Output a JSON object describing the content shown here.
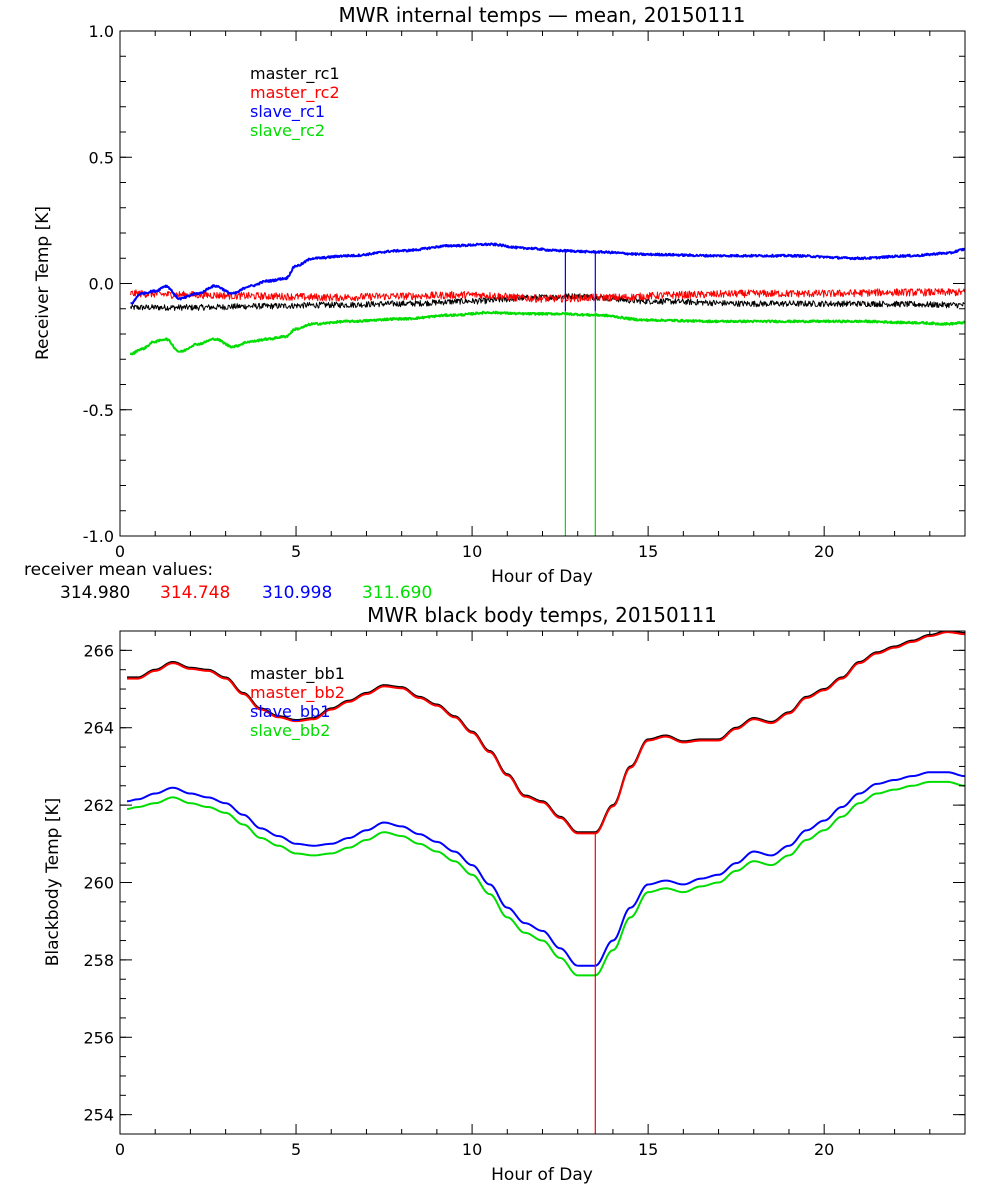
{
  "colors": {
    "black": "#000000",
    "red": "#ff0000",
    "blue": "#0000ff",
    "green": "#00dd00"
  },
  "receiver_mean": {
    "label": "receiver mean values:",
    "values": [
      "314.980",
      "314.748",
      "310.998",
      "311.690"
    ]
  },
  "chart_data": [
    {
      "type": "line",
      "title": "MWR internal temps — mean, 20150111",
      "xlabel": "Hour of Day",
      "ylabel": "Receiver Temp [K]",
      "xlim": [
        0,
        24
      ],
      "ylim": [
        -1.0,
        1.0
      ],
      "xticks": [
        0,
        5,
        10,
        15,
        20
      ],
      "xtick_labels": [
        "0",
        "5",
        "10",
        "15",
        "20"
      ],
      "yticks": [
        -1.0,
        -0.5,
        0.0,
        0.5,
        1.0
      ],
      "ytick_labels": [
        "-1.0",
        "-0.5",
        "0.0",
        "0.5",
        "1.0"
      ],
      "legend_position": "top-left",
      "series": [
        {
          "name": "master_rc1",
          "color": "black",
          "noise": 0.012,
          "x": [
            0.3,
            2,
            4,
            6,
            8,
            10,
            12,
            13,
            15,
            18,
            21,
            24
          ],
          "y": [
            -0.095,
            -0.095,
            -0.09,
            -0.085,
            -0.08,
            -0.07,
            -0.055,
            -0.05,
            -0.07,
            -0.08,
            -0.08,
            -0.085
          ]
        },
        {
          "name": "master_rc2",
          "color": "red",
          "noise": 0.015,
          "x": [
            0.3,
            2,
            4,
            6,
            8,
            10,
            12,
            14,
            16,
            18,
            20,
            22,
            24
          ],
          "y": [
            -0.04,
            -0.045,
            -0.05,
            -0.055,
            -0.05,
            -0.045,
            -0.06,
            -0.055,
            -0.045,
            -0.04,
            -0.04,
            -0.035,
            -0.035
          ]
        },
        {
          "name": "slave_rc1",
          "color": "blue",
          "noise": 0.004,
          "x": [
            0.3,
            0.6,
            1.0,
            1.3,
            1.7,
            2.2,
            2.7,
            3.2,
            3.7,
            4.2,
            4.7,
            5.0,
            5.5,
            6.5,
            8,
            9.5,
            10.5,
            11.5,
            12.5,
            13.5,
            15,
            17,
            19,
            21,
            22.5,
            23.5,
            24
          ],
          "y": [
            -0.08,
            -0.04,
            -0.03,
            -0.01,
            -0.06,
            -0.04,
            -0.01,
            -0.04,
            -0.01,
            0.01,
            0.02,
            0.07,
            0.1,
            0.11,
            0.13,
            0.15,
            0.155,
            0.14,
            0.13,
            0.125,
            0.115,
            0.11,
            0.11,
            0.1,
            0.11,
            0.12,
            0.135
          ]
        },
        {
          "name": "slave_rc2",
          "color": "green",
          "noise": 0.004,
          "x": [
            0.3,
            0.6,
            1.0,
            1.3,
            1.7,
            2.2,
            2.7,
            3.2,
            3.7,
            4.2,
            4.7,
            5.0,
            5.5,
            6.5,
            8,
            9.5,
            10.5,
            11.5,
            12.5,
            13.5,
            15,
            17,
            19,
            21,
            22.5,
            23.5,
            24
          ],
          "y": [
            -0.28,
            -0.26,
            -0.23,
            -0.22,
            -0.27,
            -0.24,
            -0.22,
            -0.25,
            -0.23,
            -0.22,
            -0.21,
            -0.18,
            -0.16,
            -0.15,
            -0.14,
            -0.125,
            -0.115,
            -0.12,
            -0.12,
            -0.125,
            -0.145,
            -0.15,
            -0.15,
            -0.15,
            -0.155,
            -0.16,
            -0.155
          ]
        }
      ],
      "vertical_lines": [
        {
          "x": 12.65,
          "color": "green",
          "from": -1.0,
          "to": -0.11
        },
        {
          "x": 13.5,
          "color": "green",
          "from": -1.0,
          "to": -0.11
        },
        {
          "x": 12.65,
          "color": "blue",
          "from": -0.11,
          "to": 0.13
        },
        {
          "x": 13.5,
          "color": "blue",
          "from": -0.11,
          "to": 0.13
        }
      ]
    },
    {
      "type": "line",
      "title": "MWR black body temps, 20150111",
      "xlabel": "Hour of Day",
      "ylabel": "Blackbody Temp [K]",
      "xlim": [
        0,
        24
      ],
      "ylim": [
        253.5,
        266.5
      ],
      "xticks": [
        0,
        5,
        10,
        15,
        20
      ],
      "xtick_labels": [
        "0",
        "5",
        "10",
        "15",
        "20"
      ],
      "yticks": [
        254,
        256,
        258,
        260,
        262,
        264,
        266
      ],
      "ytick_labels": [
        "254",
        "256",
        "258",
        "260",
        "262",
        "264",
        "266"
      ],
      "legend_position": "top-left",
      "series": [
        {
          "name": "master_bb1",
          "color": "black",
          "noise": 0,
          "x": [
            0.2,
            0.5,
            1,
            1.5,
            2,
            2.5,
            3,
            3.5,
            4,
            4.5,
            5,
            5.5,
            6,
            6.5,
            7,
            7.5,
            8,
            8.5,
            9,
            9.5,
            10,
            10.5,
            11,
            11.5,
            12,
            12.5,
            13,
            13.5,
            14,
            14.5,
            15,
            15.5,
            16,
            16.5,
            17,
            17.5,
            18,
            18.5,
            19,
            19.5,
            20,
            20.5,
            21,
            21.5,
            22,
            22.5,
            23,
            23.5,
            24
          ],
          "y": [
            265.3,
            265.3,
            265.5,
            265.7,
            265.55,
            265.5,
            265.3,
            264.9,
            264.5,
            264.3,
            264.2,
            264.25,
            264.5,
            264.7,
            264.9,
            265.1,
            265.05,
            264.8,
            264.6,
            264.3,
            263.9,
            263.4,
            262.8,
            262.25,
            262.1,
            261.7,
            261.3,
            261.3,
            262.0,
            263.0,
            263.7,
            263.8,
            263.65,
            263.7,
            263.7,
            264.0,
            264.25,
            264.15,
            264.4,
            264.8,
            265.0,
            265.3,
            265.7,
            265.95,
            266.1,
            266.25,
            266.4,
            266.5,
            266.45
          ]
        },
        {
          "name": "master_bb2",
          "color": "red",
          "noise": 0,
          "x": [
            0.2,
            0.5,
            1,
            1.5,
            2,
            2.5,
            3,
            3.5,
            4,
            4.5,
            5,
            5.5,
            6,
            6.5,
            7,
            7.5,
            8,
            8.5,
            9,
            9.5,
            10,
            10.5,
            11,
            11.5,
            12,
            12.5,
            13,
            13.5,
            14,
            14.5,
            15,
            15.5,
            16,
            16.5,
            17,
            17.5,
            18,
            18.5,
            19,
            19.5,
            20,
            20.5,
            21,
            21.5,
            22,
            22.5,
            23,
            23.5,
            24
          ],
          "y": [
            265.27,
            265.27,
            265.47,
            265.67,
            265.52,
            265.47,
            265.27,
            264.87,
            264.47,
            264.27,
            264.17,
            264.22,
            264.47,
            264.67,
            264.87,
            265.07,
            265.02,
            264.77,
            264.57,
            264.27,
            263.87,
            263.37,
            262.77,
            262.22,
            262.07,
            261.67,
            261.27,
            261.27,
            261.97,
            262.97,
            263.67,
            263.77,
            263.62,
            263.67,
            263.67,
            263.97,
            264.22,
            264.12,
            264.37,
            264.77,
            264.97,
            265.27,
            265.67,
            265.92,
            266.07,
            266.22,
            266.37,
            266.47,
            266.42
          ]
        },
        {
          "name": "slave_bb1",
          "color": "blue",
          "noise": 0,
          "x": [
            0.2,
            0.5,
            1,
            1.5,
            2,
            2.5,
            3,
            3.5,
            4,
            4.5,
            5,
            5.5,
            6,
            6.5,
            7,
            7.5,
            8,
            8.5,
            9,
            9.5,
            10,
            10.5,
            11,
            11.5,
            12,
            12.5,
            13,
            13.5,
            14,
            14.5,
            15,
            15.5,
            16,
            16.5,
            17,
            17.5,
            18,
            18.5,
            19,
            19.5,
            20,
            20.5,
            21,
            21.5,
            22,
            22.5,
            23,
            23.5,
            24
          ],
          "y": [
            262.1,
            262.15,
            262.3,
            262.45,
            262.3,
            262.2,
            262.05,
            261.75,
            261.4,
            261.2,
            261.0,
            260.95,
            261.0,
            261.15,
            261.35,
            261.55,
            261.45,
            261.25,
            261.05,
            260.8,
            260.45,
            259.95,
            259.35,
            258.95,
            258.75,
            258.3,
            257.85,
            257.85,
            258.5,
            259.35,
            259.95,
            260.05,
            259.95,
            260.1,
            260.2,
            260.5,
            260.8,
            260.7,
            260.95,
            261.35,
            261.6,
            261.95,
            262.3,
            262.55,
            262.65,
            262.75,
            262.85,
            262.85,
            262.75
          ]
        },
        {
          "name": "slave_bb2",
          "color": "green",
          "noise": 0,
          "x": [
            0.2,
            0.5,
            1,
            1.5,
            2,
            2.5,
            3,
            3.5,
            4,
            4.5,
            5,
            5.5,
            6,
            6.5,
            7,
            7.5,
            8,
            8.5,
            9,
            9.5,
            10,
            10.5,
            11,
            11.5,
            12,
            12.5,
            13,
            13.5,
            14,
            14.5,
            15,
            15.5,
            16,
            16.5,
            17,
            17.5,
            18,
            18.5,
            19,
            19.5,
            20,
            20.5,
            21,
            21.5,
            22,
            22.5,
            23,
            23.5,
            24
          ],
          "y": [
            261.9,
            261.95,
            262.05,
            262.2,
            262.05,
            261.95,
            261.8,
            261.5,
            261.15,
            260.95,
            260.75,
            260.7,
            260.75,
            260.9,
            261.1,
            261.3,
            261.2,
            261.0,
            260.8,
            260.55,
            260.2,
            259.7,
            259.1,
            258.7,
            258.5,
            258.05,
            257.6,
            257.6,
            258.25,
            259.1,
            259.75,
            259.85,
            259.75,
            259.9,
            260.0,
            260.3,
            260.55,
            260.45,
            260.7,
            261.1,
            261.35,
            261.7,
            262.05,
            262.3,
            262.4,
            262.5,
            262.6,
            262.6,
            262.5
          ]
        }
      ],
      "vertical_lines": [
        {
          "x": 13.5,
          "color": "red",
          "from": 253.5,
          "to": 261.3
        }
      ]
    }
  ]
}
